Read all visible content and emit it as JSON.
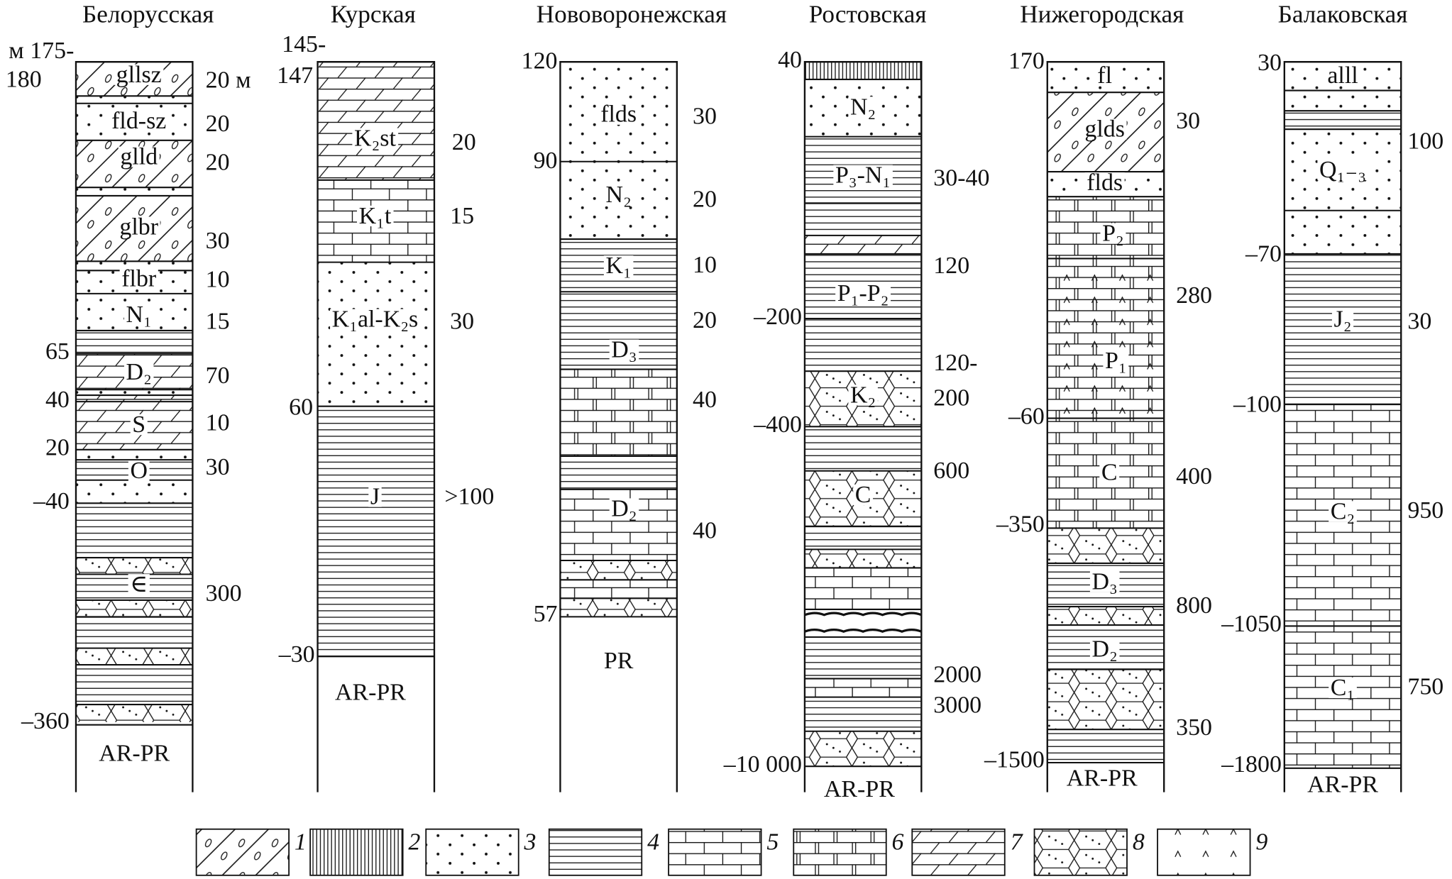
{
  "columns": [
    {
      "title": "Белорусская",
      "depths": [
        "м 175-",
        "180",
        "65",
        "40",
        "20",
        "–40",
        "–360"
      ],
      "labels": [
        "gllsz",
        "fld-sz",
        "glld",
        "glbr",
        "flbr",
        "N₁",
        "D₂",
        "S",
        "O",
        "∈"
      ],
      "thicknesses": [
        "20 м",
        "20",
        "20",
        "30",
        "10",
        "15",
        "70",
        "10",
        "30",
        "300"
      ],
      "base": "AR-PR"
    },
    {
      "title": "Курская",
      "depths": [
        "145-",
        "147",
        "60",
        "–30"
      ],
      "labels": [
        "K₂st",
        "K₁t",
        "K₁al-K₂s",
        "J"
      ],
      "thicknesses": [
        "20",
        "15",
        "30",
        ">100"
      ],
      "base": "AR-PR"
    },
    {
      "title": "Нововоронежская",
      "depths": [
        "120",
        "90",
        "57"
      ],
      "labels": [
        "flds",
        "N₂",
        "K₁",
        "D₃",
        "D₂"
      ],
      "thicknesses": [
        "30",
        "20",
        "10",
        "20",
        "40",
        "40"
      ],
      "base": "PR"
    },
    {
      "title": "Ростовская",
      "depths": [
        "40",
        "–200",
        "–400",
        "–10 000"
      ],
      "labels": [
        "N₂",
        "P₃-N₁",
        "P₁-P₂",
        "K₂",
        "C"
      ],
      "thicknesses": [
        "30-40",
        "120",
        "120-",
        "200",
        "600",
        "2000",
        "3000"
      ],
      "base": "AR-PR"
    },
    {
      "title": "Нижегородская",
      "depths": [
        "170",
        "–60",
        "–350",
        "–1500"
      ],
      "labels": [
        "fl",
        "glds",
        "flds",
        "P₂",
        "P₁",
        "C",
        "D₃",
        "D₂"
      ],
      "thicknesses": [
        "30",
        "280",
        "400",
        "800",
        "350"
      ],
      "base": "AR-PR"
    },
    {
      "title": "Балаковская",
      "depths": [
        "30",
        "–70",
        "–100",
        "–1050",
        "–1800"
      ],
      "labels": [
        "alll",
        "Q₁₋₃",
        "J₂",
        "C₂",
        "C₁"
      ],
      "thicknesses": [
        "100",
        "30",
        "950",
        "750"
      ],
      "base": "AR-PR"
    }
  ],
  "legend": [
    "1",
    "2",
    "3",
    "4",
    "5",
    "6",
    "7",
    "8",
    "9"
  ]
}
